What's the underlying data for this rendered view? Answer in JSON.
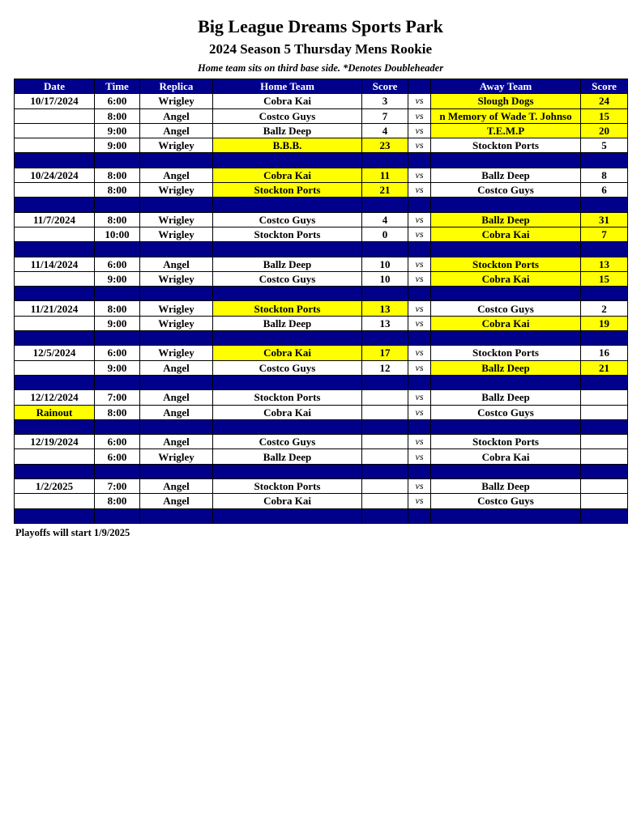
{
  "title": "Big League Dreams Sports Park",
  "subtitle": "2024 Season 5 Thursday Mens Rookie",
  "note": "Home team sits on third base side.  *Denotes Doubleheader",
  "colors": {
    "header": "#00008b",
    "winner_highlight": "#ffff00"
  },
  "columns": [
    "Date",
    "Time",
    "Replica",
    "Home Team",
    "Score",
    "",
    "Away Team",
    "Score"
  ],
  "groups": [
    {
      "games": [
        {
          "date": "10/17/2024",
          "time": "6:00",
          "replica": "Wrigley",
          "home": "Cobra Kai",
          "home_score": "3",
          "vs": "vs",
          "away": "Slough Dogs",
          "away_score": "24",
          "winner": "away"
        },
        {
          "date": "",
          "time": "8:00",
          "replica": "Angel",
          "home": "Costco Guys",
          "home_score": "7",
          "vs": "vs",
          "away": "n Memory of Wade T. Johnso",
          "away_score": "15",
          "winner": "away"
        },
        {
          "date": "",
          "time": "9:00",
          "replica": "Angel",
          "home": "Ballz Deep",
          "home_score": "4",
          "vs": "vs",
          "away": "T.E.M.P",
          "away_score": "20",
          "winner": "away"
        },
        {
          "date": "",
          "time": "9:00",
          "replica": "Wrigley",
          "home": "B.B.B.",
          "home_score": "23",
          "vs": "vs",
          "away": "Stockton Ports",
          "away_score": "5",
          "winner": "home"
        }
      ]
    },
    {
      "games": [
        {
          "date": "10/24/2024",
          "time": "8:00",
          "replica": "Angel",
          "home": "Cobra Kai",
          "home_score": "11",
          "vs": "vs",
          "away": "Ballz Deep",
          "away_score": "8",
          "winner": "home"
        },
        {
          "date": "",
          "time": "8:00",
          "replica": "Wrigley",
          "home": "Stockton Ports",
          "home_score": "21",
          "vs": "vs",
          "away": "Costco Guys",
          "away_score": "6",
          "winner": "home"
        }
      ]
    },
    {
      "games": [
        {
          "date": "11/7/2024",
          "time": "8:00",
          "replica": "Wrigley",
          "home": "Costco Guys",
          "home_score": "4",
          "vs": "vs",
          "away": "Ballz Deep",
          "away_score": "31",
          "winner": "away"
        },
        {
          "date": "",
          "time": "10:00",
          "replica": "Wrigley",
          "home": "Stockton Ports",
          "home_score": "0",
          "vs": "vs",
          "away": "Cobra Kai",
          "away_score": "7",
          "winner": "away"
        }
      ]
    },
    {
      "games": [
        {
          "date": "11/14/2024",
          "time": "6:00",
          "replica": "Angel",
          "home": "Ballz Deep",
          "home_score": "10",
          "vs": "vs",
          "away": "Stockton Ports",
          "away_score": "13",
          "winner": "away"
        },
        {
          "date": "",
          "time": "9:00",
          "replica": "Wrigley",
          "home": "Costco Guys",
          "home_score": "10",
          "vs": "vs",
          "away": "Cobra Kai",
          "away_score": "15",
          "winner": "away"
        }
      ]
    },
    {
      "games": [
        {
          "date": "11/21/2024",
          "time": "8:00",
          "replica": "Wrigley",
          "home": "Stockton Ports",
          "home_score": "13",
          "vs": "vs",
          "away": "Costco Guys",
          "away_score": "2",
          "winner": "home"
        },
        {
          "date": "",
          "time": "9:00",
          "replica": "Wrigley",
          "home": "Ballz Deep",
          "home_score": "13",
          "vs": "vs",
          "away": "Cobra Kai",
          "away_score": "19",
          "winner": "away"
        }
      ]
    },
    {
      "games": [
        {
          "date": "12/5/2024",
          "time": "6:00",
          "replica": "Wrigley",
          "home": "Cobra Kai",
          "home_score": "17",
          "vs": "vs",
          "away": "Stockton Ports",
          "away_score": "16",
          "winner": "home"
        },
        {
          "date": "",
          "time": "9:00",
          "replica": "Angel",
          "home": "Costco Guys",
          "home_score": "12",
          "vs": "vs",
          "away": "Ballz Deep",
          "away_score": "21",
          "winner": "away"
        }
      ]
    },
    {
      "games": [
        {
          "date": "12/12/2024",
          "time": "7:00",
          "replica": "Angel",
          "home": "Stockton Ports",
          "home_score": "",
          "vs": "vs",
          "away": "Ballz Deep",
          "away_score": "",
          "winner": null
        },
        {
          "date": "Rainout",
          "date_highlight": true,
          "time": "8:00",
          "replica": "Angel",
          "home": "Cobra Kai",
          "home_score": "",
          "vs": "vs",
          "away": "Costco Guys",
          "away_score": "",
          "winner": null
        }
      ]
    },
    {
      "games": [
        {
          "date": "12/19/2024",
          "time": "6:00",
          "replica": "Angel",
          "home": "Costco Guys",
          "home_score": "",
          "vs": "vs",
          "away": "Stockton Ports",
          "away_score": "",
          "winner": null
        },
        {
          "date": "",
          "time": "6:00",
          "replica": "Wrigley",
          "home": "Ballz Deep",
          "home_score": "",
          "vs": "vs",
          "away": "Cobra Kai",
          "away_score": "",
          "winner": null
        }
      ]
    },
    {
      "games": [
        {
          "date": "1/2/2025",
          "time": "7:00",
          "replica": "Angel",
          "home": "Stockton Ports",
          "home_score": "",
          "vs": "vs",
          "away": "Ballz Deep",
          "away_score": "",
          "winner": null
        },
        {
          "date": "",
          "time": "8:00",
          "replica": "Angel",
          "home": "Cobra Kai",
          "home_score": "",
          "vs": "vs",
          "away": "Costco Guys",
          "away_score": "",
          "winner": null
        }
      ]
    }
  ],
  "footer": "Playoffs will start 1/9/2025"
}
